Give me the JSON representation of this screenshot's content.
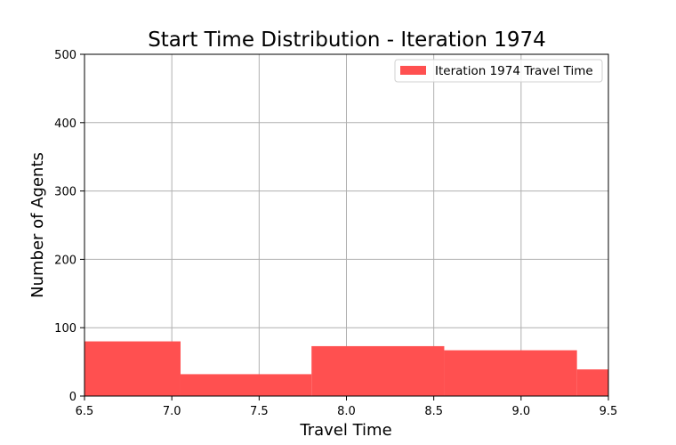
{
  "chart_data": {
    "type": "bar",
    "title": "Start Time Distribution - Iteration 1974",
    "xlabel": "Travel Time",
    "ylabel": "Number of Agents",
    "xlim": [
      6.5,
      9.5
    ],
    "ylim": [
      0,
      500
    ],
    "xticks": [
      "6.5",
      "7.0",
      "7.5",
      "8.0",
      "8.5",
      "9.0",
      "9.5"
    ],
    "yticks": [
      "0",
      "100",
      "200",
      "300",
      "400",
      "500"
    ],
    "grid": true,
    "legend_position": "top-right",
    "series": [
      {
        "name": "Iteration 1974 Travel Time",
        "color": "#ff5050",
        "bins": [
          {
            "x0": 6.5,
            "x1": 7.05,
            "value": 80
          },
          {
            "x0": 7.05,
            "x1": 7.8,
            "value": 32
          },
          {
            "x0": 7.8,
            "x1": 8.56,
            "value": 73
          },
          {
            "x0": 8.56,
            "x1": 9.32,
            "value": 67
          },
          {
            "x0": 9.32,
            "x1": 9.5,
            "value": 39
          }
        ]
      }
    ]
  }
}
